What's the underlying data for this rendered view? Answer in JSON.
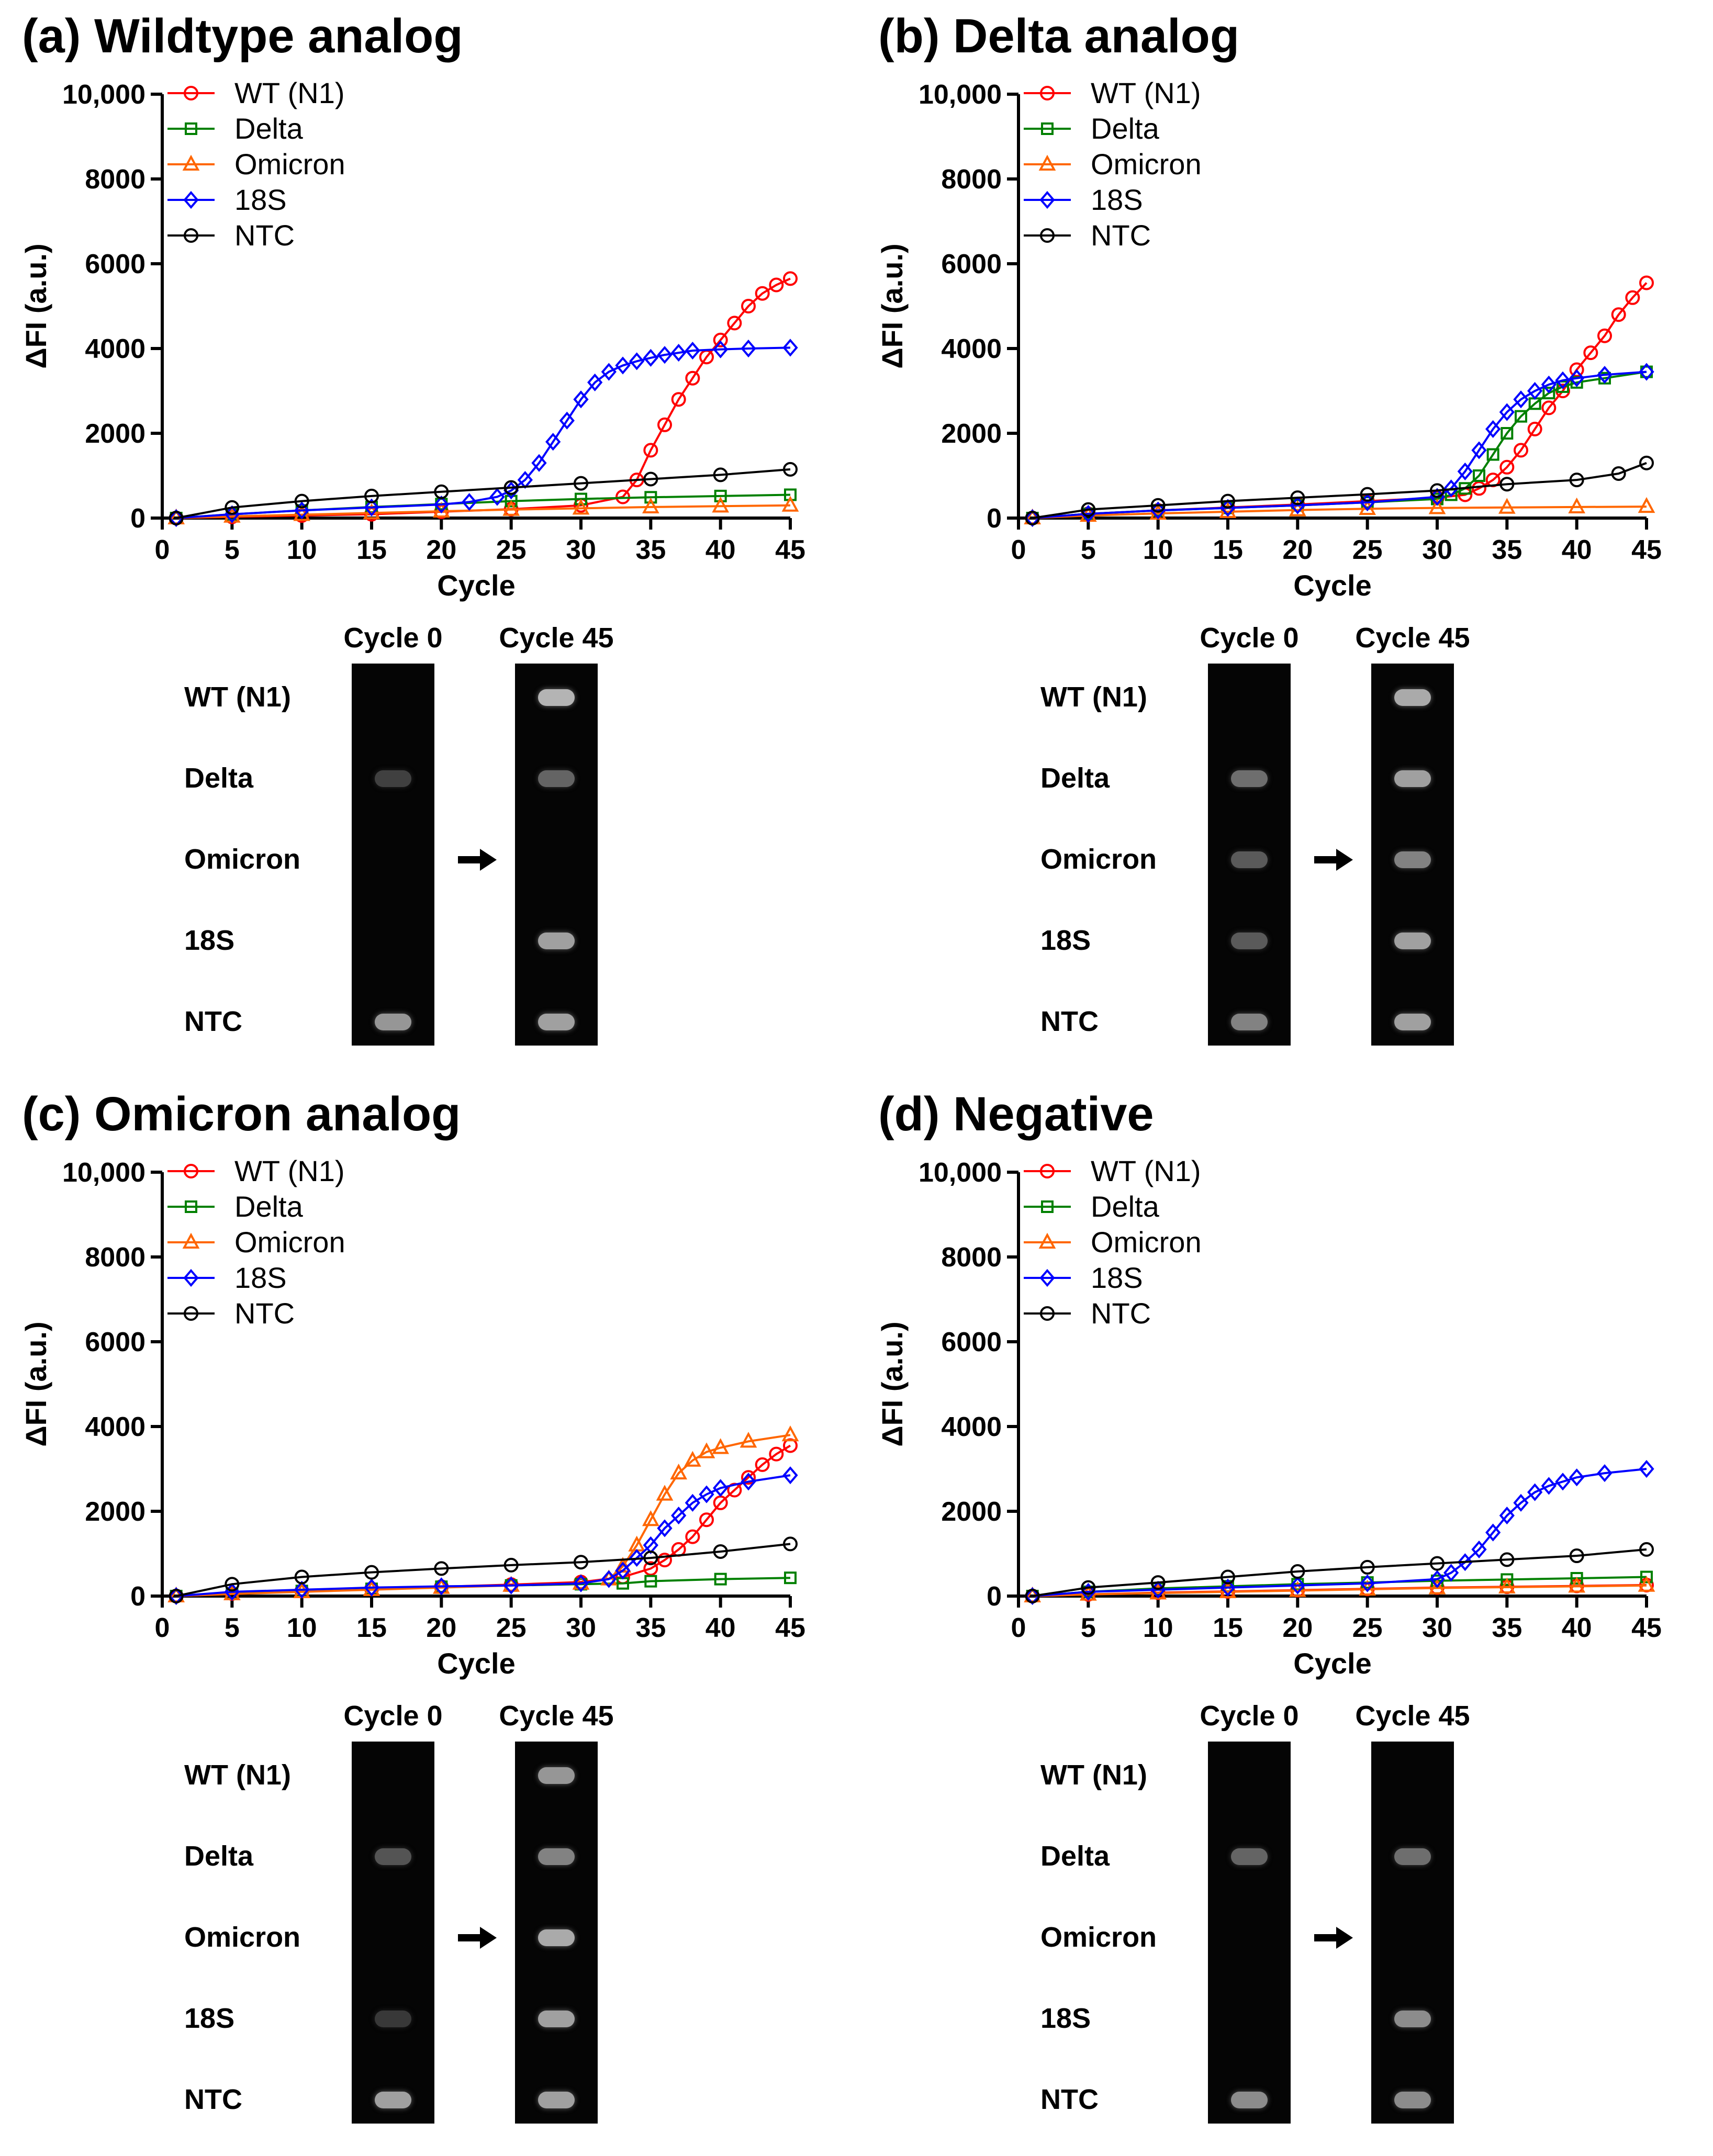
{
  "panels": [
    {
      "title": "(a) Wildtype analog",
      "chart_data": {
        "type": "line",
        "xlabel": "Cycle",
        "ylabel": "ΔFI (a.u.)",
        "xlim": [
          0,
          45
        ],
        "ylim": [
          0,
          10000
        ],
        "xticks": [
          0,
          5,
          10,
          15,
          20,
          25,
          30,
          35,
          40,
          45
        ],
        "yticks": [
          0,
          2000,
          4000,
          6000,
          8000,
          10000
        ],
        "ytick_labels": [
          "0",
          "2000",
          "4000",
          "6000",
          "8000",
          "10,000"
        ],
        "legend_position": "top-left",
        "series": [
          {
            "name": "WT (N1)",
            "color": "#ff0000",
            "marker": "circle",
            "x": [
              1,
              5,
              10,
              15,
              20,
              25,
              30,
              33,
              34,
              35,
              36,
              37,
              38,
              39,
              40,
              41,
              42,
              43,
              44,
              45
            ],
            "y": [
              0,
              30,
              60,
              90,
              150,
              210,
              300,
              500,
              900,
              1600,
              2200,
              2800,
              3300,
              3800,
              4200,
              4600,
              5000,
              5300,
              5500,
              5650
            ]
          },
          {
            "name": "Delta",
            "color": "#008000",
            "marker": "square",
            "x": [
              1,
              5,
              10,
              15,
              20,
              25,
              30,
              35,
              40,
              45
            ],
            "y": [
              0,
              90,
              180,
              260,
              330,
              400,
              450,
              490,
              520,
              550
            ]
          },
          {
            "name": "Omicron",
            "color": "#ff6600",
            "marker": "triangle",
            "x": [
              1,
              5,
              10,
              15,
              20,
              25,
              30,
              35,
              40,
              45
            ],
            "y": [
              0,
              40,
              80,
              120,
              160,
              200,
              230,
              260,
              280,
              300
            ]
          },
          {
            "name": "18S",
            "color": "#0000ff",
            "marker": "diamond",
            "x": [
              1,
              5,
              10,
              15,
              20,
              22,
              24,
              25,
              26,
              27,
              28,
              29,
              30,
              31,
              32,
              33,
              34,
              35,
              36,
              37,
              38,
              40,
              42,
              45
            ],
            "y": [
              0,
              90,
              180,
              250,
              320,
              380,
              500,
              650,
              900,
              1300,
              1800,
              2300,
              2800,
              3200,
              3450,
              3600,
              3700,
              3780,
              3850,
              3900,
              3950,
              3980,
              4000,
              4020
            ]
          },
          {
            "name": "NTC",
            "color": "#000000",
            "marker": "circle",
            "x": [
              1,
              5,
              10,
              15,
              20,
              25,
              30,
              35,
              40,
              45
            ],
            "y": [
              0,
              250,
              400,
              520,
              620,
              720,
              820,
              920,
              1020,
              1150
            ]
          }
        ]
      },
      "gel": {
        "col_labels": [
          "Cycle 0",
          "Cycle 45"
        ],
        "row_labels": [
          "WT (N1)",
          "Delta",
          "Omicron",
          "18S",
          "NTC"
        ],
        "cycle0": [
          0,
          0.12,
          0,
          0,
          0.55
        ],
        "cycle45": [
          0.7,
          0.3,
          0,
          0.6,
          0.6
        ]
      }
    },
    {
      "title": "(b) Delta analog",
      "chart_data": {
        "type": "line",
        "xlabel": "Cycle",
        "ylabel": "ΔFI (a.u.)",
        "xlim": [
          0,
          45
        ],
        "ylim": [
          0,
          10000
        ],
        "xticks": [
          0,
          5,
          10,
          15,
          20,
          25,
          30,
          35,
          40,
          45
        ],
        "yticks": [
          0,
          2000,
          4000,
          6000,
          8000,
          10000
        ],
        "ytick_labels": [
          "0",
          "2000",
          "4000",
          "6000",
          "8000",
          "10,000"
        ],
        "legend_position": "top-left",
        "series": [
          {
            "name": "WT (N1)",
            "color": "#ff0000",
            "marker": "circle",
            "x": [
              1,
              5,
              10,
              15,
              20,
              25,
              30,
              32,
              33,
              34,
              35,
              36,
              37,
              38,
              39,
              40,
              41,
              42,
              43,
              44,
              45
            ],
            "y": [
              0,
              100,
              180,
              250,
              320,
              400,
              480,
              550,
              700,
              900,
              1200,
              1600,
              2100,
              2600,
              3000,
              3500,
              3900,
              4300,
              4800,
              5200,
              5550
            ]
          },
          {
            "name": "Delta",
            "color": "#008000",
            "marker": "square",
            "x": [
              1,
              5,
              10,
              15,
              20,
              25,
              30,
              31,
              32,
              33,
              34,
              35,
              36,
              37,
              38,
              39,
              40,
              42,
              45
            ],
            "y": [
              0,
              100,
              180,
              240,
              300,
              370,
              450,
              550,
              700,
              1000,
              1500,
              2000,
              2400,
              2700,
              2950,
              3100,
              3200,
              3300,
              3450
            ]
          },
          {
            "name": "Omicron",
            "color": "#ff6600",
            "marker": "triangle",
            "x": [
              1,
              5,
              10,
              15,
              20,
              25,
              30,
              35,
              40,
              45
            ],
            "y": [
              0,
              60,
              110,
              150,
              190,
              220,
              240,
              250,
              260,
              270
            ]
          },
          {
            "name": "18S",
            "color": "#0000ff",
            "marker": "diamond",
            "x": [
              1,
              5,
              10,
              15,
              20,
              25,
              30,
              31,
              32,
              33,
              34,
              35,
              36,
              37,
              38,
              39,
              40,
              42,
              45
            ],
            "y": [
              0,
              100,
              180,
              240,
              300,
              370,
              500,
              700,
              1100,
              1600,
              2100,
              2500,
              2800,
              3000,
              3150,
              3250,
              3300,
              3380,
              3450
            ]
          },
          {
            "name": "NTC",
            "color": "#000000",
            "marker": "circle",
            "x": [
              1,
              5,
              10,
              15,
              20,
              25,
              30,
              35,
              40,
              43,
              45
            ],
            "y": [
              0,
              200,
              300,
              400,
              480,
              560,
              650,
              800,
              900,
              1050,
              1300
            ]
          }
        ]
      },
      "gel": {
        "col_labels": [
          "Cycle 0",
          "Cycle 45"
        ],
        "row_labels": [
          "WT (N1)",
          "Delta",
          "Omicron",
          "18S",
          "NTC"
        ],
        "cycle0": [
          0,
          0.35,
          0.25,
          0.25,
          0.45
        ],
        "cycle45": [
          0.65,
          0.6,
          0.45,
          0.6,
          0.6
        ]
      }
    },
    {
      "title": "(c) Omicron analog",
      "chart_data": {
        "type": "line",
        "xlabel": "Cycle",
        "ylabel": "ΔFI (a.u.)",
        "xlim": [
          0,
          45
        ],
        "ylim": [
          0,
          10000
        ],
        "xticks": [
          0,
          5,
          10,
          15,
          20,
          25,
          30,
          35,
          40,
          45
        ],
        "yticks": [
          0,
          2000,
          4000,
          6000,
          8000,
          10000
        ],
        "ytick_labels": [
          "0",
          "2000",
          "4000",
          "6000",
          "8000",
          "10,000"
        ],
        "legend_position": "top-left",
        "series": [
          {
            "name": "WT (N1)",
            "color": "#ff0000",
            "marker": "circle",
            "x": [
              1,
              5,
              10,
              15,
              20,
              25,
              30,
              33,
              35,
              36,
              37,
              38,
              39,
              40,
              41,
              42,
              43,
              44,
              45
            ],
            "y": [
              0,
              60,
              120,
              170,
              220,
              270,
              330,
              450,
              650,
              850,
              1100,
              1400,
              1800,
              2200,
              2500,
              2800,
              3100,
              3350,
              3550
            ]
          },
          {
            "name": "Delta",
            "color": "#008000",
            "marker": "square",
            "x": [
              1,
              5,
              10,
              15,
              20,
              25,
              30,
              33,
              35,
              40,
              45
            ],
            "y": [
              0,
              60,
              120,
              170,
              220,
              250,
              280,
              300,
              350,
              400,
              430
            ]
          },
          {
            "name": "Omicron",
            "color": "#ff6600",
            "marker": "triangle",
            "x": [
              1,
              5,
              10,
              15,
              20,
              25,
              30,
              32,
              33,
              34,
              35,
              36,
              37,
              38,
              39,
              40,
              42,
              45
            ],
            "y": [
              0,
              50,
              100,
              150,
              200,
              250,
              300,
              400,
              700,
              1200,
              1800,
              2400,
              2900,
              3200,
              3400,
              3500,
              3650,
              3800
            ]
          },
          {
            "name": "18S",
            "color": "#0000ff",
            "marker": "diamond",
            "x": [
              1,
              5,
              10,
              15,
              20,
              25,
              30,
              32,
              33,
              34,
              35,
              36,
              37,
              38,
              39,
              40,
              42,
              45
            ],
            "y": [
              0,
              100,
              150,
              200,
              230,
              250,
              300,
              400,
              600,
              900,
              1200,
              1600,
              1900,
              2200,
              2400,
              2550,
              2700,
              2850
            ]
          },
          {
            "name": "NTC",
            "color": "#000000",
            "marker": "circle",
            "x": [
              1,
              5,
              10,
              15,
              20,
              25,
              30,
              35,
              40,
              45
            ],
            "y": [
              0,
              280,
              450,
              560,
              650,
              730,
              800,
              900,
              1050,
              1230
            ]
          }
        ]
      },
      "gel": {
        "col_labels": [
          "Cycle 0",
          "Cycle 45"
        ],
        "row_labels": [
          "WT (N1)",
          "Delta",
          "Omicron",
          "18S",
          "NTC"
        ],
        "cycle0": [
          0,
          0.22,
          0,
          0.08,
          0.6
        ],
        "cycle45": [
          0.55,
          0.45,
          0.65,
          0.6,
          0.6
        ]
      }
    },
    {
      "title": "(d) Negative",
      "chart_data": {
        "type": "line",
        "xlabel": "Cycle",
        "ylabel": "ΔFI (a.u.)",
        "xlim": [
          0,
          45
        ],
        "ylim": [
          0,
          10000
        ],
        "xticks": [
          0,
          5,
          10,
          15,
          20,
          25,
          30,
          35,
          40,
          45
        ],
        "yticks": [
          0,
          2000,
          4000,
          6000,
          8000,
          10000
        ],
        "ytick_labels": [
          "0",
          "2000",
          "4000",
          "6000",
          "8000",
          "10,000"
        ],
        "legend_position": "top-left",
        "series": [
          {
            "name": "WT (N1)",
            "color": "#ff0000",
            "marker": "circle",
            "x": [
              1,
              5,
              10,
              15,
              20,
              25,
              30,
              35,
              40,
              45
            ],
            "y": [
              0,
              40,
              80,
              110,
              140,
              170,
              200,
              220,
              240,
              260
            ]
          },
          {
            "name": "Delta",
            "color": "#008000",
            "marker": "square",
            "x": [
              1,
              5,
              10,
              15,
              20,
              25,
              30,
              35,
              40,
              45
            ],
            "y": [
              0,
              100,
              180,
              230,
              280,
              320,
              360,
              390,
              420,
              450
            ]
          },
          {
            "name": "Omicron",
            "color": "#ff6600",
            "marker": "triangle",
            "x": [
              1,
              5,
              10,
              15,
              20,
              25,
              30,
              35,
              40,
              45
            ],
            "y": [
              0,
              40,
              70,
              100,
              130,
              160,
              190,
              210,
              230,
              250
            ]
          },
          {
            "name": "18S",
            "color": "#0000ff",
            "marker": "diamond",
            "x": [
              1,
              5,
              10,
              15,
              20,
              25,
              30,
              31,
              32,
              33,
              34,
              35,
              36,
              37,
              38,
              39,
              40,
              42,
              45
            ],
            "y": [
              0,
              100,
              150,
              200,
              250,
              300,
              400,
              550,
              800,
              1100,
              1500,
              1900,
              2200,
              2450,
              2600,
              2700,
              2800,
              2900,
              3000
            ]
          },
          {
            "name": "NTC",
            "color": "#000000",
            "marker": "circle",
            "x": [
              1,
              5,
              10,
              15,
              20,
              25,
              30,
              35,
              40,
              45
            ],
            "y": [
              0,
              200,
              320,
              450,
              580,
              680,
              770,
              860,
              950,
              1100
            ]
          }
        ]
      },
      "gel": {
        "col_labels": [
          "Cycle 0",
          "Cycle 45"
        ],
        "row_labels": [
          "WT (N1)",
          "Delta",
          "Omicron",
          "18S",
          "NTC"
        ],
        "cycle0": [
          0,
          0.3,
          0,
          0,
          0.5
        ],
        "cycle45": [
          0,
          0.35,
          0,
          0.5,
          0.5
        ]
      }
    }
  ]
}
